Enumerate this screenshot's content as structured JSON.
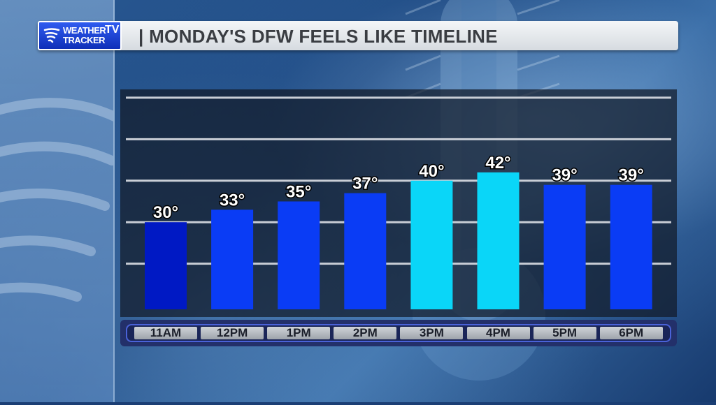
{
  "header": {
    "logo_line1": "WEATHER",
    "logo_line2": "TRACKER",
    "logo_tv": "TV",
    "title": "| MONDAY'S DFW FEELS LIKE TIMELINE"
  },
  "colors": {
    "cold": "#0019c4",
    "cool": "#0a3cf5",
    "mild": "#0ad6f8"
  },
  "chart_data": {
    "type": "bar",
    "title": "MONDAY'S DFW FEELS LIKE TIMELINE",
    "categories": [
      "11AM",
      "12PM",
      "1PM",
      "2PM",
      "3PM",
      "4PM",
      "5PM",
      "6PM"
    ],
    "values": [
      30,
      33,
      35,
      37,
      40,
      42,
      39,
      39
    ],
    "data_labels": [
      "30°",
      "33°",
      "35°",
      "37°",
      "40°",
      "42°",
      "39°",
      "39°"
    ],
    "bar_colors": [
      "cold",
      "cool",
      "cool",
      "cool",
      "mild",
      "mild",
      "cool",
      "cool"
    ],
    "unit": "°",
    "xlabel": "",
    "ylabel": "",
    "ylim": [
      9,
      62
    ],
    "gridlines": [
      20,
      30,
      40,
      50,
      60
    ],
    "grid": true,
    "legend": false
  }
}
